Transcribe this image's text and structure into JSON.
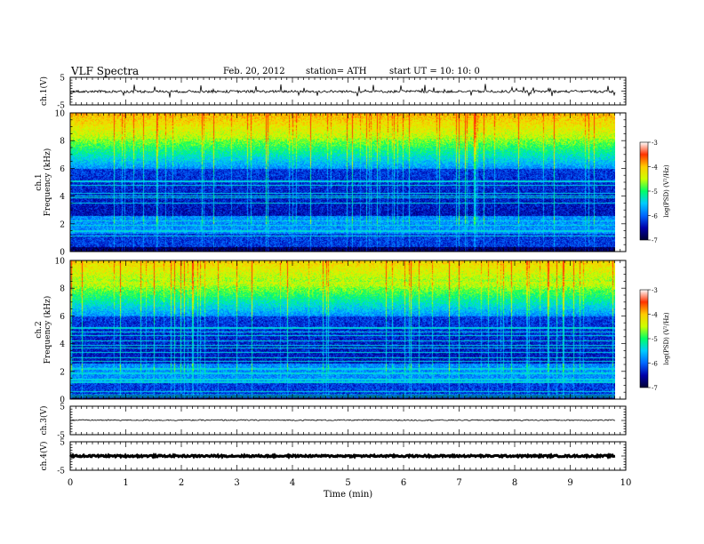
{
  "header": {
    "title": "VLF  Spectra",
    "date": "Feb. 20, 2012",
    "station": "station= ATH",
    "start": "start  UT  =    10: 10: 0"
  },
  "chart_data": {
    "type": "heatmap",
    "x_axis": {
      "label": "Time  (min)",
      "range": [
        0,
        10
      ],
      "ticks": [
        "0",
        "1",
        "2",
        "3",
        "4",
        "5",
        "6",
        "7",
        "8",
        "9",
        "10"
      ],
      "data_end_min": 9.8
    },
    "panels": [
      {
        "kind": "waveform",
        "ylabel": "ch.1(V)",
        "ylim": [
          -5,
          5
        ],
        "yticks": [
          "5",
          "-5"
        ],
        "signal": "noisy trace around -0.1 V with frequent spikes"
      },
      {
        "kind": "spectrogram",
        "ylabel": "ch.1\nFrequency  (kHz)",
        "ylim": [
          0,
          10
        ],
        "yticks": [
          "0",
          "2",
          "4",
          "6",
          "8",
          "10"
        ],
        "colorbar": {
          "label": "log(PSD) (V²/Hz)",
          "range": [
            -7,
            -3
          ],
          "ticks": [
            "-3",
            "-4",
            "-5",
            "-6",
            "-7"
          ]
        }
      },
      {
        "kind": "spectrogram",
        "ylabel": "ch.2\nFrequency  (kHz)",
        "ylim": [
          0,
          10
        ],
        "yticks": [
          "0",
          "2",
          "4",
          "6",
          "8",
          "10"
        ],
        "colorbar": {
          "label": "log(PSD) (V²/Hz)",
          "range": [
            -7,
            -3
          ],
          "ticks": [
            "-3",
            "-4",
            "-5",
            "-6",
            "-7"
          ]
        }
      },
      {
        "kind": "waveform",
        "ylabel": "ch.3(V)",
        "ylim": [
          -5,
          5
        ],
        "yticks": [
          "5",
          "-5"
        ],
        "signal": "flat trace near 0 V"
      },
      {
        "kind": "waveform",
        "ylabel": "ch.4(V)",
        "ylim": [
          -5,
          5
        ],
        "yticks": [
          "5",
          "-5"
        ],
        "signal": "flat thick trace near 0 V"
      }
    ],
    "colormap": [
      "#000033",
      "#0000aa",
      "#0066ff",
      "#00ccff",
      "#00ff66",
      "#ccff00",
      "#ffcc00",
      "#ff3300",
      "#ffffff"
    ]
  }
}
